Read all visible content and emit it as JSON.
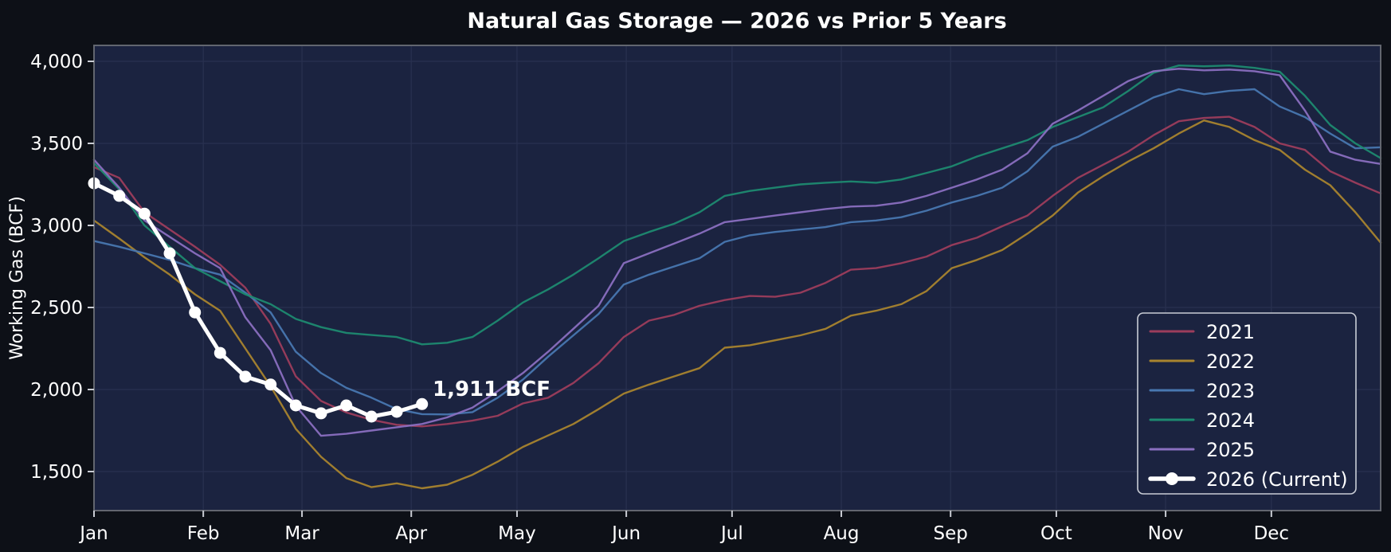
{
  "title": "Natural Gas Storage — 2026 vs Prior 5 Years",
  "annotation": {
    "text": "1,911 BCF"
  },
  "axes": {
    "y_label": "Working Gas (BCF)",
    "y_ticks": [
      {
        "value": 1500,
        "label": "1,500"
      },
      {
        "value": 2000,
        "label": "2,000"
      },
      {
        "value": 2500,
        "label": "2,500"
      },
      {
        "value": 3000,
        "label": "3,000"
      },
      {
        "value": 3500,
        "label": "3,500"
      },
      {
        "value": 4000,
        "label": "4,000"
      }
    ],
    "x_ticks": [
      {
        "label": "Jan",
        "day": 0
      },
      {
        "label": "Feb",
        "day": 31
      },
      {
        "label": "Mar",
        "day": 59
      },
      {
        "label": "Apr",
        "day": 90
      },
      {
        "label": "May",
        "day": 120
      },
      {
        "label": "Jun",
        "day": 151
      },
      {
        "label": "Jul",
        "day": 181
      },
      {
        "label": "Aug",
        "day": 212
      },
      {
        "label": "Sep",
        "day": 243
      },
      {
        "label": "Oct",
        "day": 273
      },
      {
        "label": "Nov",
        "day": 304
      },
      {
        "label": "Dec",
        "day": 334
      }
    ]
  },
  "legend": {
    "items": [
      {
        "label": "2021",
        "color": "#9c3d5c",
        "thick": false
      },
      {
        "label": "2022",
        "color": "#a8842e",
        "thick": false
      },
      {
        "label": "2023",
        "color": "#4877b0",
        "thick": false
      },
      {
        "label": "2024",
        "color": "#1e8a70",
        "thick": false
      },
      {
        "label": "2025",
        "color": "#8a6fc0",
        "thick": false
      },
      {
        "label": "2026 (Current)",
        "color": "#ffffff",
        "thick": true
      }
    ]
  },
  "colors": {
    "outer_background": "#0d1017",
    "plot_background": "#1b2340",
    "gridline": "#28304f",
    "spine": "#62666f",
    "tick": "#c9ccd4",
    "text": "#ffffff",
    "series_2021": "#9c3d5c",
    "series_2022": "#a8842e",
    "series_2023": "#4877b0",
    "series_2024": "#1e8a70",
    "series_2025": "#8a6fc0",
    "series_2026": "#ffffff"
  },
  "chart_data": {
    "type": "line",
    "title": "Natural Gas Storage — 2026 vs Prior 5 Years",
    "xlabel": "",
    "ylabel": "Working Gas (BCF)",
    "x_unit": "week_of_year",
    "weeks_full_year": 52,
    "ylim": [
      1290,
      4120
    ],
    "grid": true,
    "legend_position": "lower right",
    "current_value_bcf": 1911,
    "series": [
      {
        "name": "2021",
        "color": "#9c3d5c",
        "marker": false,
        "values": [
          3355,
          3290,
          3080,
          2975,
          2870,
          2760,
          2620,
          2400,
          2080,
          1930,
          1860,
          1815,
          1785,
          1775,
          1790,
          1810,
          1840,
          1915,
          1950,
          2040,
          2160,
          2320,
          2420,
          2455,
          2510,
          2545,
          2570,
          2565,
          2590,
          2650,
          2730,
          2740,
          2770,
          2810,
          2880,
          2925,
          2995,
          3060,
          3180,
          3290,
          3370,
          3450,
          3550,
          3635,
          3655,
          3662,
          3600,
          3500,
          3460,
          3330,
          3260,
          3195
        ]
      },
      {
        "name": "2022",
        "color": "#a8842e",
        "marker": false,
        "values": [
          3030,
          2920,
          2806,
          2700,
          2580,
          2480,
          2250,
          2020,
          1760,
          1590,
          1460,
          1405,
          1428,
          1398,
          1420,
          1480,
          1560,
          1650,
          1720,
          1790,
          1880,
          1975,
          2030,
          2080,
          2130,
          2255,
          2270,
          2300,
          2330,
          2370,
          2450,
          2480,
          2520,
          2600,
          2740,
          2790,
          2850,
          2950,
          3060,
          3200,
          3300,
          3390,
          3470,
          3560,
          3640,
          3600,
          3520,
          3460,
          3340,
          3245,
          3080,
          2895
        ]
      },
      {
        "name": "2023",
        "color": "#4877b0",
        "marker": false,
        "values": [
          2905,
          2870,
          2830,
          2790,
          2740,
          2700,
          2590,
          2470,
          2230,
          2100,
          2010,
          1950,
          1880,
          1850,
          1848,
          1862,
          1950,
          2060,
          2200,
          2330,
          2460,
          2640,
          2700,
          2750,
          2800,
          2900,
          2940,
          2960,
          2975,
          2990,
          3020,
          3030,
          3050,
          3090,
          3140,
          3180,
          3230,
          3330,
          3480,
          3540,
          3620,
          3700,
          3780,
          3830,
          3800,
          3820,
          3830,
          3725,
          3660,
          3560,
          3470,
          3476
        ]
      },
      {
        "name": "2024",
        "color": "#1e8a70",
        "marker": false,
        "values": [
          3380,
          3220,
          3000,
          2870,
          2740,
          2660,
          2580,
          2520,
          2430,
          2380,
          2345,
          2332,
          2320,
          2275,
          2285,
          2320,
          2420,
          2530,
          2610,
          2700,
          2800,
          2905,
          2960,
          3010,
          3080,
          3180,
          3210,
          3230,
          3250,
          3260,
          3268,
          3260,
          3280,
          3320,
          3360,
          3420,
          3470,
          3520,
          3600,
          3660,
          3720,
          3820,
          3930,
          3975,
          3970,
          3975,
          3960,
          3937,
          3790,
          3612,
          3500,
          3410
        ]
      },
      {
        "name": "2025",
        "color": "#8a6fc0",
        "marker": false,
        "values": [
          3400,
          3230,
          3030,
          2930,
          2830,
          2740,
          2440,
          2240,
          1900,
          1718,
          1730,
          1750,
          1770,
          1790,
          1830,
          1890,
          1990,
          2100,
          2230,
          2370,
          2510,
          2770,
          2830,
          2890,
          2950,
          3020,
          3040,
          3060,
          3080,
          3100,
          3115,
          3120,
          3140,
          3180,
          3230,
          3280,
          3340,
          3440,
          3620,
          3700,
          3790,
          3880,
          3940,
          3955,
          3945,
          3950,
          3940,
          3915,
          3700,
          3450,
          3400,
          3375
        ]
      },
      {
        "name": "2026 (Current)",
        "color": "#ffffff",
        "marker": true,
        "values": [
          3257,
          3180,
          3072,
          2830,
          2470,
          2223,
          2078,
          2030,
          1903,
          1855,
          1903,
          1835,
          1864,
          1911
        ]
      }
    ]
  }
}
